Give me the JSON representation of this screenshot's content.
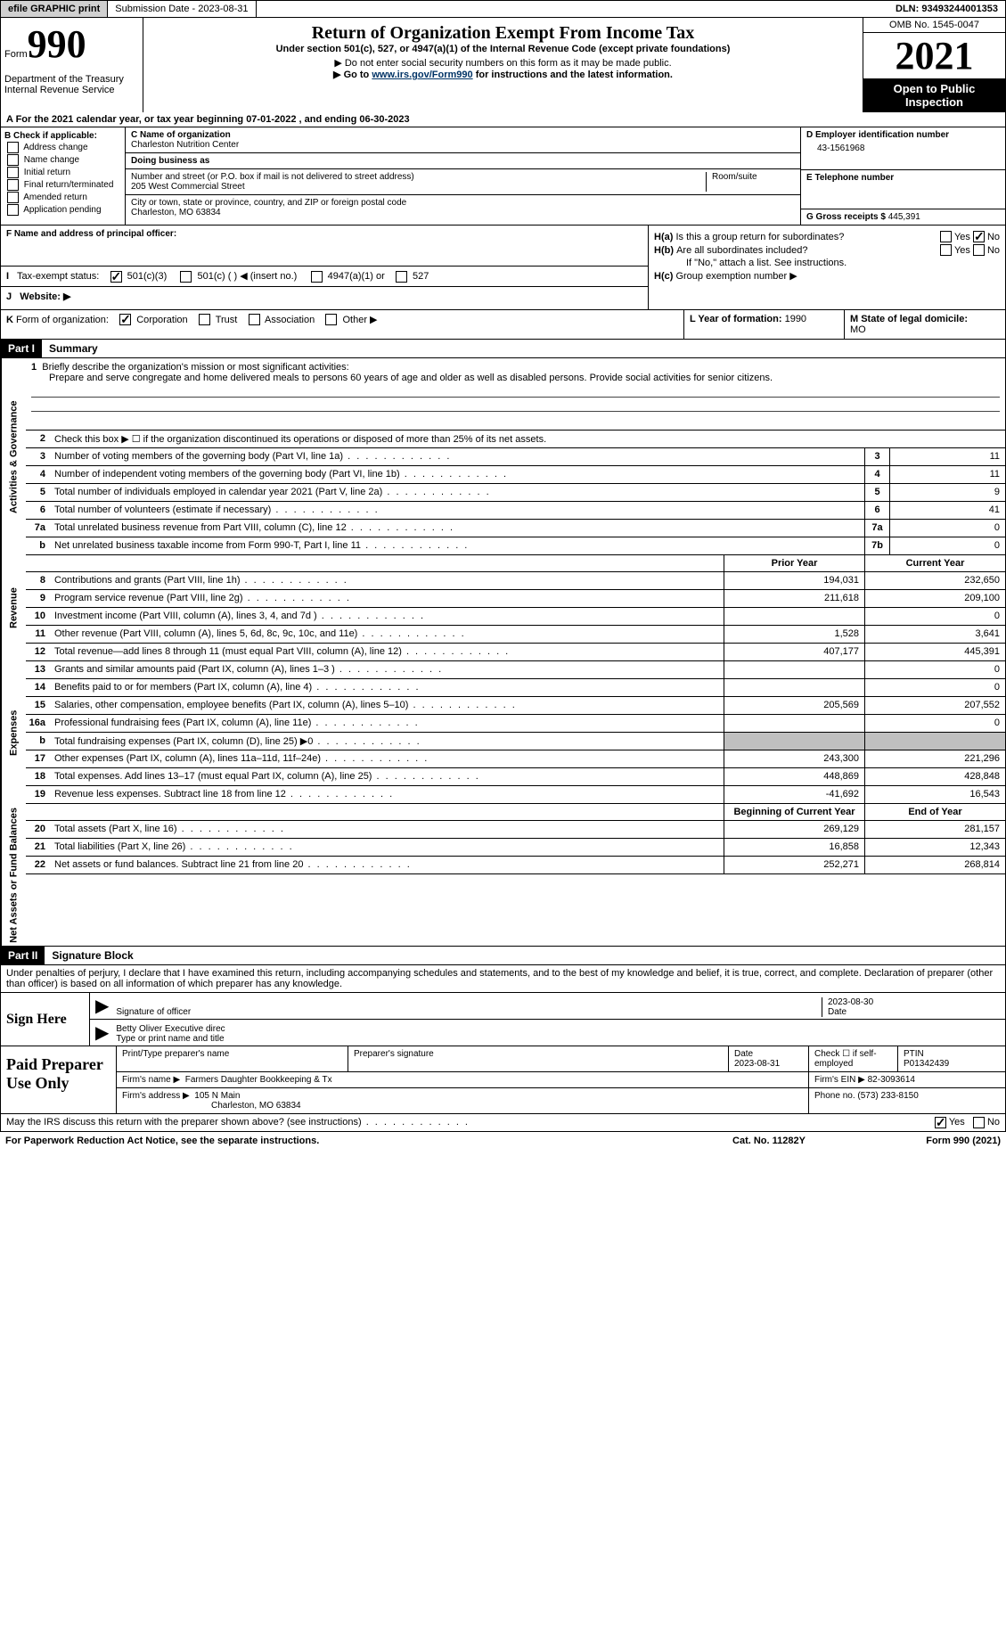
{
  "top_bar": {
    "efile": "efile GRAPHIC print",
    "submission": "Submission Date - 2023-08-31",
    "dln": "DLN: 93493244001353"
  },
  "header": {
    "form_label": "Form",
    "form_number": "990",
    "title": "Return of Organization Exempt From Income Tax",
    "subtitle": "Under section 501(c), 527, or 4947(a)(1) of the Internal Revenue Code (except private foundations)",
    "note1": "▶ Do not enter social security numbers on this form as it may be made public.",
    "note2_prefix": "▶ Go to ",
    "note2_link": "www.irs.gov/Form990",
    "note2_suffix": " for instructions and the latest information.",
    "dept": "Department of the Treasury",
    "irs": "Internal Revenue Service",
    "omb": "OMB No. 1545-0047",
    "year": "2021",
    "inspection": "Open to Public Inspection"
  },
  "line_a": "A For the 2021 calendar year, or tax year beginning 07-01-2022    , and ending 06-30-2023",
  "section_b": {
    "header": "B Check if applicable:",
    "items": [
      "Address change",
      "Name change",
      "Initial return",
      "Final return/terminated",
      "Amended return",
      "Application pending"
    ]
  },
  "section_c": {
    "name_label": "C Name of organization",
    "name": "Charleston Nutrition Center",
    "dba_label": "Doing business as",
    "dba": "",
    "street_label": "Number and street (or P.O. box if mail is not delivered to street address)",
    "street": "205 West Commercial Street",
    "room_label": "Room/suite",
    "city_label": "City or town, state or province, country, and ZIP or foreign postal code",
    "city": "Charleston, MO  63834"
  },
  "section_d": {
    "ein_label": "D Employer identification number",
    "ein": "43-1561968",
    "phone_label": "E Telephone number",
    "phone": "",
    "gross_label": "G Gross receipts $",
    "gross": "445,391"
  },
  "section_f": {
    "label": "F Name and address of principal officer:",
    "value": ""
  },
  "section_h": {
    "ha_label": "H(a)",
    "ha_text": "Is this a group return for subordinates?",
    "hb_label": "H(b)",
    "hb_text": "Are all subordinates included?",
    "hb_note": "If \"No,\" attach a list. See instructions.",
    "hc_label": "H(c)",
    "hc_text": "Group exemption number ▶",
    "yes": "Yes",
    "no": "No"
  },
  "section_i": {
    "label": "I",
    "text": "Tax-exempt status:",
    "opts": [
      "501(c)(3)",
      "501(c) (  ) ◀ (insert no.)",
      "4947(a)(1) or",
      "527"
    ]
  },
  "section_j": {
    "label": "J",
    "text": "Website: ▶"
  },
  "section_k": {
    "label": "K",
    "text": "Form of organization:",
    "opts": [
      "Corporation",
      "Trust",
      "Association",
      "Other ▶"
    ],
    "l_label": "L Year of formation:",
    "l_val": "1990",
    "m_label": "M State of legal domicile:",
    "m_val": "MO"
  },
  "part1": {
    "header": "Part I",
    "title": "Summary",
    "mission_label": "Briefly describe the organization's mission or most significant activities:",
    "mission": "Prepare and serve congregate and home delivered meals to persons 60 years of age and older as well as disabled persons. Provide social activities for senior citizens.",
    "line2": "Check this box ▶ ☐ if the organization discontinued its operations or disposed of more than 25% of its net assets.",
    "side_labels": {
      "activities": "Activities & Governance",
      "revenue": "Revenue",
      "expenses": "Expenses",
      "net": "Net Assets or Fund Balances"
    },
    "col_headers": {
      "prior": "Prior Year",
      "current": "Current Year",
      "begin": "Beginning of Current Year",
      "end": "End of Year"
    },
    "lines_gov": [
      {
        "n": "3",
        "d": "Number of voting members of the governing body (Part VI, line 1a)",
        "box": "3",
        "v": "11"
      },
      {
        "n": "4",
        "d": "Number of independent voting members of the governing body (Part VI, line 1b)",
        "box": "4",
        "v": "11"
      },
      {
        "n": "5",
        "d": "Total number of individuals employed in calendar year 2021 (Part V, line 2a)",
        "box": "5",
        "v": "9"
      },
      {
        "n": "6",
        "d": "Total number of volunteers (estimate if necessary)",
        "box": "6",
        "v": "41"
      },
      {
        "n": "7a",
        "d": "Total unrelated business revenue from Part VIII, column (C), line 12",
        "box": "7a",
        "v": "0"
      },
      {
        "n": "b",
        "d": "Net unrelated business taxable income from Form 990-T, Part I, line 11",
        "box": "7b",
        "v": "0"
      }
    ],
    "lines_rev": [
      {
        "n": "8",
        "d": "Contributions and grants (Part VIII, line 1h)",
        "p": "194,031",
        "c": "232,650"
      },
      {
        "n": "9",
        "d": "Program service revenue (Part VIII, line 2g)",
        "p": "211,618",
        "c": "209,100"
      },
      {
        "n": "10",
        "d": "Investment income (Part VIII, column (A), lines 3, 4, and 7d )",
        "p": "",
        "c": "0"
      },
      {
        "n": "11",
        "d": "Other revenue (Part VIII, column (A), lines 5, 6d, 8c, 9c, 10c, and 11e)",
        "p": "1,528",
        "c": "3,641"
      },
      {
        "n": "12",
        "d": "Total revenue—add lines 8 through 11 (must equal Part VIII, column (A), line 12)",
        "p": "407,177",
        "c": "445,391"
      }
    ],
    "lines_exp": [
      {
        "n": "13",
        "d": "Grants and similar amounts paid (Part IX, column (A), lines 1–3 )",
        "p": "",
        "c": "0"
      },
      {
        "n": "14",
        "d": "Benefits paid to or for members (Part IX, column (A), line 4)",
        "p": "",
        "c": "0"
      },
      {
        "n": "15",
        "d": "Salaries, other compensation, employee benefits (Part IX, column (A), lines 5–10)",
        "p": "205,569",
        "c": "207,552"
      },
      {
        "n": "16a",
        "d": "Professional fundraising fees (Part IX, column (A), line 11e)",
        "p": "",
        "c": "0"
      },
      {
        "n": "b",
        "d": "Total fundraising expenses (Part IX, column (D), line 25) ▶0",
        "p": "shaded",
        "c": "shaded"
      },
      {
        "n": "17",
        "d": "Other expenses (Part IX, column (A), lines 11a–11d, 11f–24e)",
        "p": "243,300",
        "c": "221,296"
      },
      {
        "n": "18",
        "d": "Total expenses. Add lines 13–17 (must equal Part IX, column (A), line 25)",
        "p": "448,869",
        "c": "428,848"
      },
      {
        "n": "19",
        "d": "Revenue less expenses. Subtract line 18 from line 12",
        "p": "-41,692",
        "c": "16,543"
      }
    ],
    "lines_net": [
      {
        "n": "20",
        "d": "Total assets (Part X, line 16)",
        "p": "269,129",
        "c": "281,157"
      },
      {
        "n": "21",
        "d": "Total liabilities (Part X, line 26)",
        "p": "16,858",
        "c": "12,343"
      },
      {
        "n": "22",
        "d": "Net assets or fund balances. Subtract line 21 from line 20",
        "p": "252,271",
        "c": "268,814"
      }
    ]
  },
  "part2": {
    "header": "Part II",
    "title": "Signature Block",
    "declaration": "Under penalties of perjury, I declare that I have examined this return, including accompanying schedules and statements, and to the best of my knowledge and belief, it is true, correct, and complete. Declaration of preparer (other than officer) is based on all information of which preparer has any knowledge.",
    "sign_here": "Sign Here",
    "sig_officer": "Signature of officer",
    "sig_date": "2023-08-30",
    "date_label": "Date",
    "typed_name": "Betty Oliver  Executive direc",
    "typed_label": "Type or print name and title",
    "paid": "Paid Preparer Use Only",
    "prep_name_label": "Print/Type preparer's name",
    "prep_sig_label": "Preparer's signature",
    "prep_date_label": "Date",
    "prep_date": "2023-08-31",
    "check_self": "Check ☐ if self-employed",
    "ptin_label": "PTIN",
    "ptin": "P01342439",
    "firm_name_label": "Firm's name    ▶",
    "firm_name": "Farmers Daughter Bookkeeping & Tx",
    "firm_ein_label": "Firm's EIN ▶",
    "firm_ein": "82-3093614",
    "firm_addr_label": "Firm's address ▶",
    "firm_addr": "105 N Main",
    "firm_city": "Charleston, MO  63834",
    "firm_phone_label": "Phone no.",
    "firm_phone": "(573) 233-8150",
    "discuss": "May the IRS discuss this return with the preparer shown above? (see instructions)",
    "yes": "Yes",
    "no": "No"
  },
  "footer": {
    "pra": "For Paperwork Reduction Act Notice, see the separate instructions.",
    "cat": "Cat. No. 11282Y",
    "form": "Form 990 (2021)"
  }
}
